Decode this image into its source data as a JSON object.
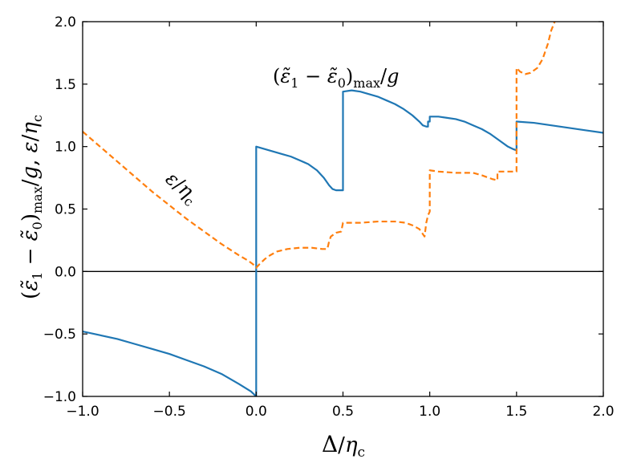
{
  "chart_data": {
    "type": "line",
    "xlabel": "Δ/η_c",
    "ylabel": "(ε̃₁ − ε̃₀)_max/g, ε/η_c",
    "xlim": [
      -1.0,
      2.0
    ],
    "ylim": [
      -1.0,
      2.0
    ],
    "x_ticks": [
      "−1.0",
      "−0.5",
      "0.0",
      "0.5",
      "1.0",
      "1.5",
      "2.0"
    ],
    "y_ticks": [
      "−1.0",
      "−0.5",
      "0.0",
      "0.5",
      "1.0",
      "1.5",
      "2.0"
    ],
    "grid": false,
    "zero_line": true,
    "annotations": [
      {
        "text": "(ε̃₁ − ε̃₀)_max/g",
        "series": "gap"
      },
      {
        "text": "ε/η_c",
        "series": "epsilon"
      }
    ],
    "series": [
      {
        "id": "gap",
        "color": "#1f77b4",
        "style": "solid",
        "points": [
          [
            -1.0,
            -0.48
          ],
          [
            -0.9,
            -0.51
          ],
          [
            -0.8,
            -0.54
          ],
          [
            -0.7,
            -0.58
          ],
          [
            -0.6,
            -0.62
          ],
          [
            -0.5,
            -0.66
          ],
          [
            -0.4,
            -0.71
          ],
          [
            -0.3,
            -0.76
          ],
          [
            -0.2,
            -0.82
          ],
          [
            -0.1,
            -0.9
          ],
          [
            -0.03,
            -0.96
          ],
          [
            0.0,
            -1.0
          ],
          [
            0.0,
            1.0
          ],
          [
            0.05,
            0.98
          ],
          [
            0.1,
            0.96
          ],
          [
            0.15,
            0.94
          ],
          [
            0.2,
            0.92
          ],
          [
            0.25,
            0.89
          ],
          [
            0.3,
            0.86
          ],
          [
            0.35,
            0.81
          ],
          [
            0.39,
            0.75
          ],
          [
            0.42,
            0.69
          ],
          [
            0.44,
            0.66
          ],
          [
            0.46,
            0.65
          ],
          [
            0.49,
            0.65
          ],
          [
            0.5,
            0.65
          ],
          [
            0.5,
            1.44
          ],
          [
            0.55,
            1.45
          ],
          [
            0.6,
            1.44
          ],
          [
            0.65,
            1.42
          ],
          [
            0.7,
            1.4
          ],
          [
            0.75,
            1.37
          ],
          [
            0.8,
            1.34
          ],
          [
            0.85,
            1.3
          ],
          [
            0.9,
            1.25
          ],
          [
            0.94,
            1.2
          ],
          [
            0.96,
            1.17
          ],
          [
            0.98,
            1.16
          ],
          [
            0.99,
            1.16
          ],
          [
            0.99,
            1.2
          ],
          [
            1.0,
            1.2
          ],
          [
            1.0,
            1.24
          ],
          [
            1.05,
            1.24
          ],
          [
            1.1,
            1.23
          ],
          [
            1.15,
            1.22
          ],
          [
            1.2,
            1.2
          ],
          [
            1.25,
            1.17
          ],
          [
            1.3,
            1.14
          ],
          [
            1.35,
            1.1
          ],
          [
            1.4,
            1.05
          ],
          [
            1.45,
            1.0
          ],
          [
            1.48,
            0.98
          ],
          [
            1.5,
            0.97
          ],
          [
            1.5,
            1.2
          ],
          [
            1.6,
            1.19
          ],
          [
            1.7,
            1.17
          ],
          [
            1.8,
            1.15
          ],
          [
            1.9,
            1.13
          ],
          [
            2.0,
            1.11
          ]
        ]
      },
      {
        "id": "epsilon",
        "color": "#ff7f0e",
        "style": "dashed",
        "points": [
          [
            -1.0,
            1.12
          ],
          [
            -0.9,
            1.0
          ],
          [
            -0.8,
            0.88
          ],
          [
            -0.7,
            0.76
          ],
          [
            -0.6,
            0.64
          ],
          [
            -0.5,
            0.53
          ],
          [
            -0.4,
            0.42
          ],
          [
            -0.3,
            0.32
          ],
          [
            -0.2,
            0.22
          ],
          [
            -0.1,
            0.13
          ],
          [
            -0.05,
            0.09
          ],
          [
            -0.02,
            0.06
          ],
          [
            0.0,
            0.03
          ],
          [
            0.02,
            0.06
          ],
          [
            0.05,
            0.1
          ],
          [
            0.08,
            0.13
          ],
          [
            0.12,
            0.16
          ],
          [
            0.18,
            0.18
          ],
          [
            0.25,
            0.19
          ],
          [
            0.32,
            0.19
          ],
          [
            0.38,
            0.18
          ],
          [
            0.41,
            0.18
          ],
          [
            0.42,
            0.24
          ],
          [
            0.43,
            0.28
          ],
          [
            0.46,
            0.31
          ],
          [
            0.49,
            0.32
          ],
          [
            0.5,
            0.39
          ],
          [
            0.6,
            0.39
          ],
          [
            0.7,
            0.4
          ],
          [
            0.8,
            0.4
          ],
          [
            0.86,
            0.39
          ],
          [
            0.9,
            0.37
          ],
          [
            0.94,
            0.34
          ],
          [
            0.96,
            0.3
          ],
          [
            0.97,
            0.28
          ],
          [
            0.98,
            0.39
          ],
          [
            0.99,
            0.45
          ],
          [
            1.0,
            0.48
          ],
          [
            1.0,
            0.81
          ],
          [
            1.05,
            0.8
          ],
          [
            1.15,
            0.79
          ],
          [
            1.25,
            0.79
          ],
          [
            1.3,
            0.77
          ],
          [
            1.36,
            0.74
          ],
          [
            1.39,
            0.73
          ],
          [
            1.39,
            0.8
          ],
          [
            1.42,
            0.8
          ],
          [
            1.45,
            0.8
          ],
          [
            1.5,
            0.8
          ],
          [
            1.5,
            1.63
          ],
          [
            1.52,
            1.6
          ],
          [
            1.55,
            1.58
          ],
          [
            1.58,
            1.59
          ],
          [
            1.62,
            1.63
          ],
          [
            1.65,
            1.7
          ],
          [
            1.68,
            1.82
          ],
          [
            1.7,
            1.93
          ],
          [
            1.72,
            2.0
          ]
        ]
      }
    ]
  }
}
